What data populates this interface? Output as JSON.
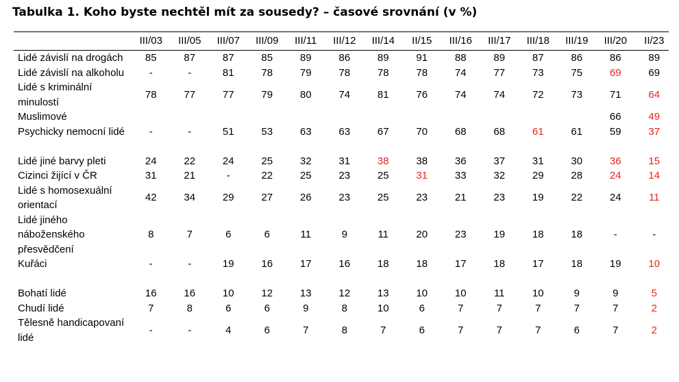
{
  "title": "Tabulka 1. Koho byste nechtěl mít za sousedy? – časové srovnání (v %)",
  "table": {
    "header": [
      "III/03",
      "III/05",
      "III/07",
      "III/09",
      "III/11",
      "III/12",
      "III/14",
      "II/15",
      "III/16",
      "III/17",
      "III/18",
      "III/19",
      "III/20",
      "II/23"
    ],
    "highlight_color": "#e8231e",
    "rows": [
      {
        "label": "Lidé závislí na drogách",
        "cells": [
          85,
          87,
          87,
          85,
          89,
          86,
          89,
          91,
          88,
          89,
          87,
          86,
          86,
          89
        ]
      },
      {
        "label": "Lidé závislí na alkoholu",
        "cells": [
          "-",
          "-",
          81,
          78,
          79,
          78,
          78,
          78,
          74,
          77,
          73,
          75,
          {
            "text": 69,
            "highlight": true
          },
          69
        ]
      },
      {
        "label": "Lidé s kriminální minulostí",
        "cells": [
          78,
          77,
          77,
          79,
          80,
          74,
          81,
          76,
          74,
          74,
          72,
          73,
          71,
          {
            "text": 64,
            "highlight": true
          }
        ]
      },
      {
        "label": "Muslimové",
        "cells": [
          null,
          null,
          null,
          null,
          null,
          null,
          null,
          null,
          null,
          null,
          null,
          null,
          66,
          {
            "text": 49,
            "highlight": true
          }
        ]
      },
      {
        "label": "Psychicky nemocní lidé",
        "cells": [
          "-",
          "-",
          51,
          53,
          63,
          63,
          67,
          70,
          68,
          68,
          {
            "text": 61,
            "highlight": true
          },
          61,
          59,
          {
            "text": 37,
            "highlight": true
          }
        ]
      },
      {
        "label": "Lidé jiné barvy pleti",
        "cells": [
          24,
          22,
          24,
          25,
          32,
          31,
          {
            "text": 38,
            "highlight": true
          },
          38,
          36,
          37,
          31,
          30,
          {
            "text": 36,
            "highlight": true
          },
          {
            "text": 15,
            "highlight": true
          }
        ]
      },
      {
        "label": "Cizinci žijící v ČR",
        "cells": [
          31,
          21,
          "-",
          22,
          25,
          23,
          25,
          {
            "text": 31,
            "highlight": true
          },
          33,
          32,
          29,
          28,
          {
            "text": 24,
            "highlight": true
          },
          {
            "text": 14,
            "highlight": true
          }
        ]
      },
      {
        "label": "Lidé s homosexuální orientací",
        "cells": [
          42,
          34,
          29,
          27,
          26,
          23,
          25,
          23,
          21,
          23,
          19,
          22,
          24,
          {
            "text": 11,
            "highlight": true
          }
        ]
      },
      {
        "label": "Lidé jiného náboženského přesvědčení",
        "cells": [
          8,
          7,
          6,
          6,
          11,
          9,
          11,
          20,
          23,
          19,
          18,
          18,
          "-",
          "-"
        ]
      },
      {
        "label": "Kuřáci",
        "cells": [
          "-",
          "-",
          19,
          16,
          17,
          16,
          18,
          18,
          17,
          18,
          17,
          18,
          19,
          {
            "text": 10,
            "highlight": true
          }
        ]
      },
      {
        "label": "Bohatí lidé",
        "cells": [
          16,
          16,
          10,
          12,
          13,
          12,
          13,
          10,
          10,
          11,
          10,
          9,
          9,
          {
            "text": 5,
            "highlight": true
          }
        ]
      },
      {
        "label": "Chudí lidé",
        "cells": [
          7,
          8,
          6,
          6,
          9,
          8,
          10,
          6,
          7,
          7,
          7,
          7,
          7,
          {
            "text": 2,
            "highlight": true
          }
        ]
      },
      {
        "label": "Tělesně handicapovaní lidé",
        "cells": [
          "-",
          "-",
          4,
          6,
          7,
          8,
          7,
          6,
          7,
          7,
          7,
          6,
          7,
          {
            "text": 2,
            "highlight": true
          }
        ]
      }
    ]
  }
}
